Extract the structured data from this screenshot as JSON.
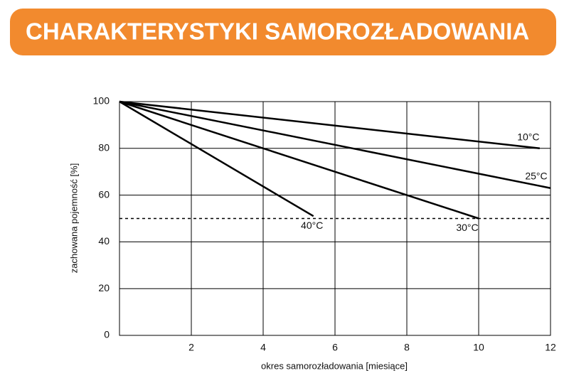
{
  "chart_data": {
    "type": "line",
    "title": "CHARAKTERYSTYKI SAMOROZŁADOWANIA",
    "x_label": "okres samorozładowania [miesiące]",
    "y_label": "zachowana pojemność [%]",
    "xlim": [
      0,
      12
    ],
    "xticks": [
      2,
      4,
      6,
      8,
      10,
      12
    ],
    "ylim": [
      0,
      100
    ],
    "yticks": [
      0,
      20,
      40,
      60,
      80,
      100
    ],
    "grid": true,
    "reference_line": 50,
    "series": [
      {
        "name": "10°C",
        "color": "#000000",
        "x": [
          0,
          11.7
        ],
        "values": [
          100,
          80
        ]
      },
      {
        "name": "25°C",
        "color": "#000000",
        "x": [
          0,
          12
        ],
        "values": [
          100,
          63
        ]
      },
      {
        "name": "30°C",
        "color": "#000000",
        "x": [
          0,
          10
        ],
        "values": [
          100,
          50
        ]
      },
      {
        "name": "40°C",
        "color": "#000000",
        "x": [
          0,
          5.4
        ],
        "values": [
          100,
          51
        ]
      }
    ]
  }
}
